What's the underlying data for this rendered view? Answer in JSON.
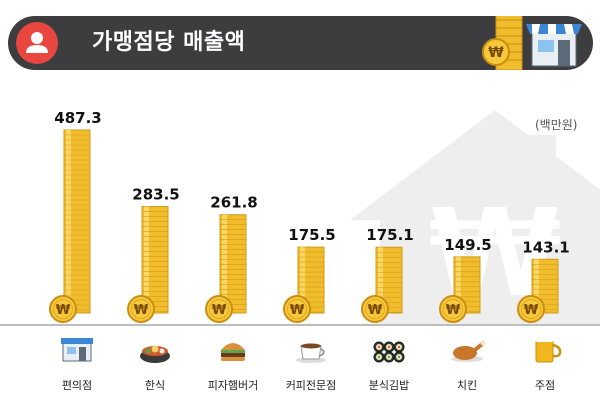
{
  "header": {
    "title": "가맹점당 매출액",
    "title_color": "#ffffff",
    "bar_color": "#3d3d3f",
    "avatar_color": "#e8473f",
    "avatar_icon": "user-icon",
    "decoration_icons": [
      "coin-stack-icon",
      "won-coin-icon",
      "store-icon"
    ]
  },
  "chart_data": {
    "type": "bar",
    "title": "가맹점당 매출액",
    "unit": "(백만원)",
    "categories": [
      "편의점",
      "한식",
      "피자햄버거",
      "커피전문점",
      "분식김밥",
      "치킨",
      "주점"
    ],
    "values": [
      487.3,
      283.5,
      261.8,
      175.5,
      175.1,
      149.5,
      143.1
    ],
    "value_labels": [
      "487.3",
      "283.5",
      "261.8",
      "175.5",
      "175.1",
      "149.5",
      "143.1"
    ],
    "category_icons": [
      "convenience-store-icon",
      "korean-bowl-icon",
      "burger-icon",
      "coffee-cup-icon",
      "kimbap-icon",
      "chicken-icon",
      "beer-mug-icon"
    ],
    "ylim": [
      0,
      487.3
    ],
    "bar_style": "stacked gold coins with won coin at base",
    "bar_color": "#f2bd2c",
    "won_symbol": "₩",
    "grid": false,
    "background_icon": "house-won-icon"
  }
}
